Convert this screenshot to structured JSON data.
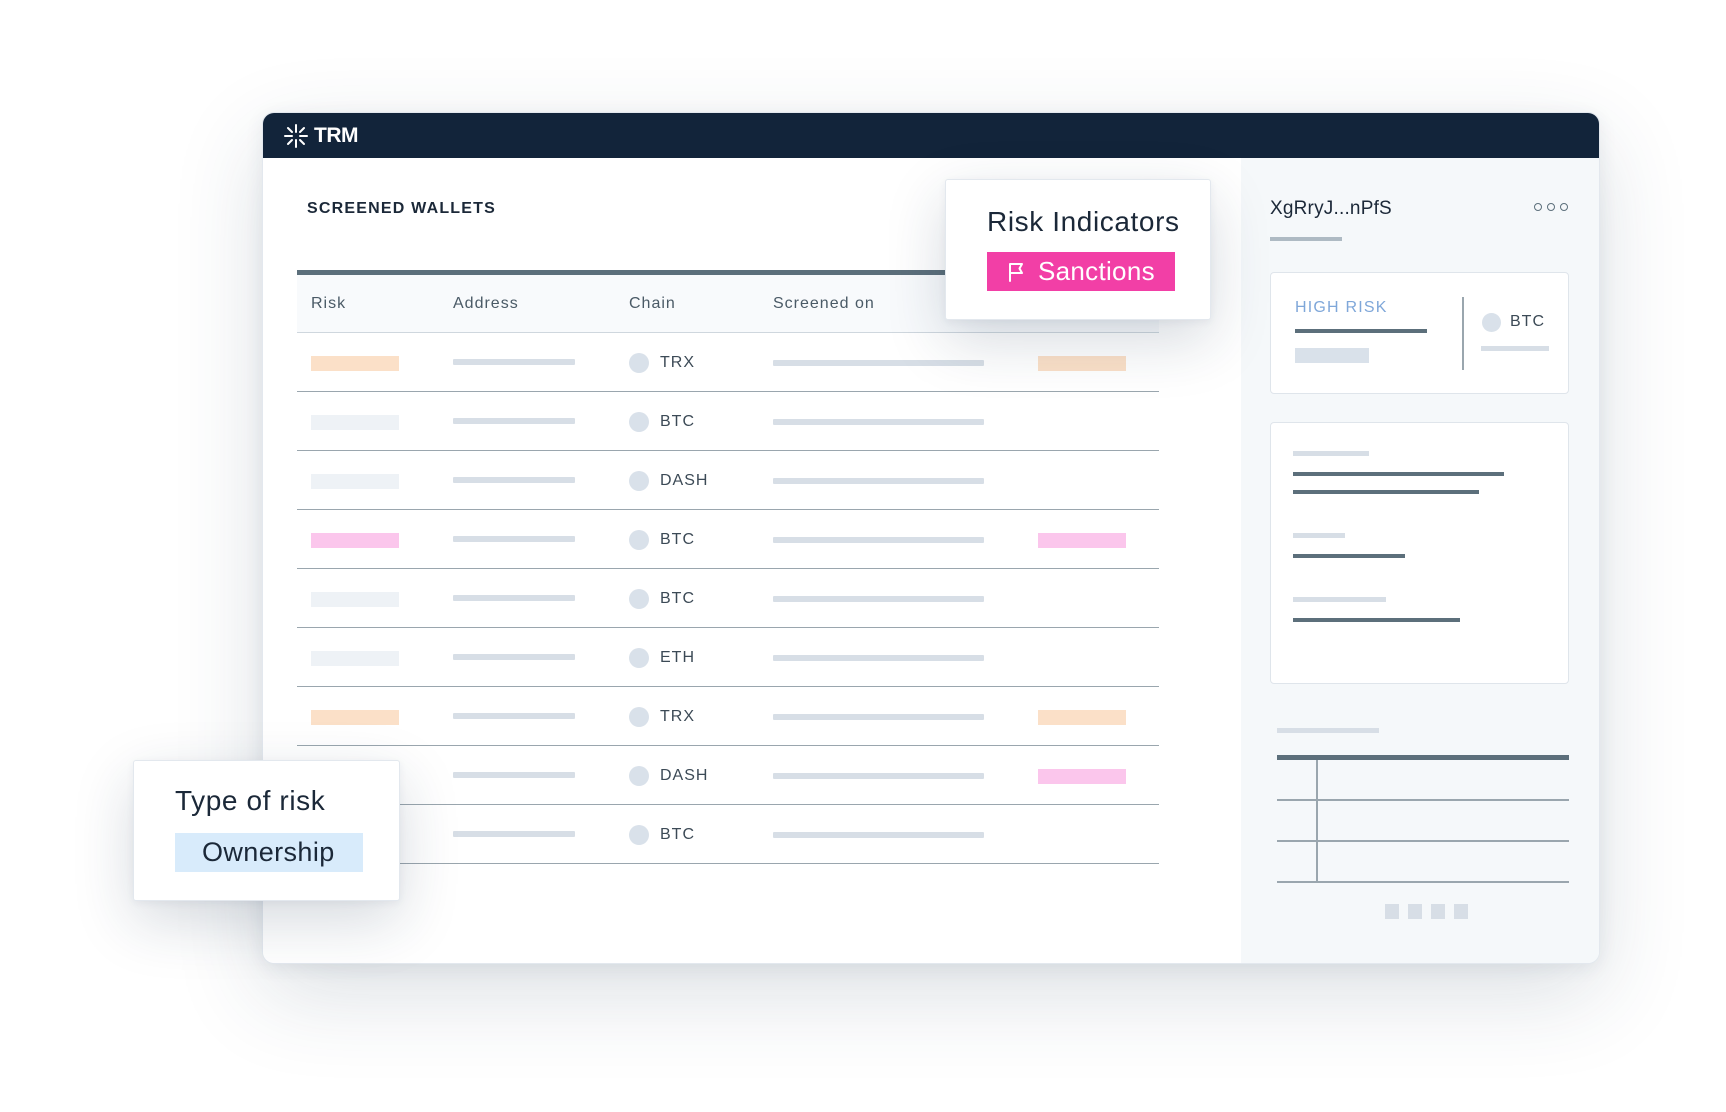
{
  "app": {
    "brand": "TRM"
  },
  "main": {
    "title": "SCREENED WALLETS"
  },
  "table": {
    "columns": [
      "Risk",
      "Address",
      "Chain",
      "Screened on"
    ],
    "rows": [
      {
        "chain": "TRX",
        "risk": "orange",
        "status": "orange"
      },
      {
        "chain": "BTC",
        "risk": "none",
        "status": ""
      },
      {
        "chain": "DASH",
        "risk": "none",
        "status": ""
      },
      {
        "chain": "BTC",
        "risk": "pink",
        "status": "pink"
      },
      {
        "chain": "BTC",
        "risk": "none",
        "status": ""
      },
      {
        "chain": "ETH",
        "risk": "none",
        "status": ""
      },
      {
        "chain": "TRX",
        "risk": "orange",
        "status": "orange"
      },
      {
        "chain": "DASH",
        "risk": "hidden",
        "status": "pink"
      },
      {
        "chain": "BTC",
        "risk": "hidden",
        "status": ""
      }
    ]
  },
  "risk_indicators": {
    "title": "Risk Indicators",
    "badge": "Sanctions",
    "icon": "flag-icon"
  },
  "type_of_risk": {
    "title": "Type of risk",
    "badge": "Ownership"
  },
  "side": {
    "address": "XgRryJ...nPfS",
    "risk_label": "HIGH RISK",
    "chain": "BTC"
  },
  "colors": {
    "titlebar": "#12243a",
    "sanctions": "#f23fa6",
    "ownership": "#d8ebfb",
    "orange": "#fbe0c8",
    "pink": "#fbc6ec",
    "none": "#eef2f6",
    "high_risk": "#7fa7d9"
  }
}
